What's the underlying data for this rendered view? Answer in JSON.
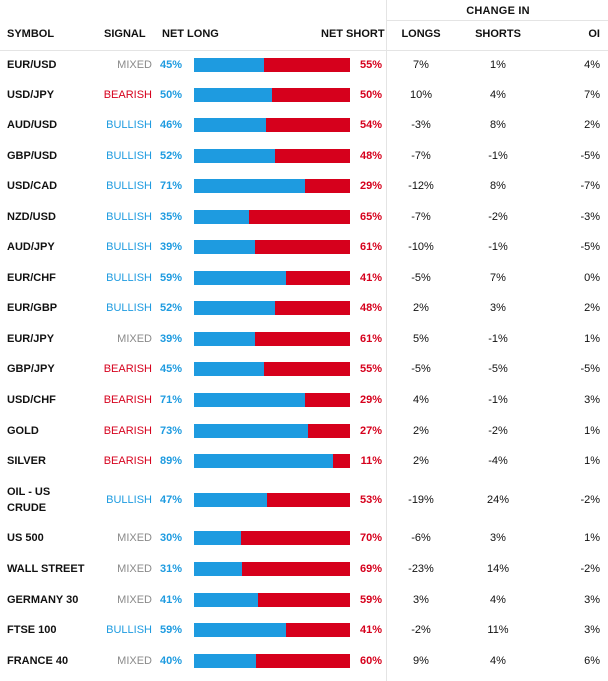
{
  "header": {
    "group_label": "CHANGE IN",
    "symbol": "SYMBOL",
    "signal": "SIGNAL",
    "net_long": "NET LONG",
    "net_short": "NET SHORT",
    "longs": "LONGS",
    "shorts": "SHORTS",
    "oi": "OI"
  },
  "colors": {
    "bullish": "#1e9be0",
    "bearish": "#d6001c",
    "mixed": "#8a8a8a"
  },
  "rows": [
    {
      "symbol": "EUR/USD",
      "signal": "MIXED",
      "net_long": "45%",
      "net_short": "55%",
      "long_fraction": 0.45,
      "longs": "7%",
      "shorts": "1%",
      "oi": "4%"
    },
    {
      "symbol": "USD/JPY",
      "signal": "BEARISH",
      "net_long": "50%",
      "net_short": "50%",
      "long_fraction": 0.5,
      "longs": "10%",
      "shorts": "4%",
      "oi": "7%"
    },
    {
      "symbol": "AUD/USD",
      "signal": "BULLISH",
      "net_long": "46%",
      "net_short": "54%",
      "long_fraction": 0.46,
      "longs": "-3%",
      "shorts": "8%",
      "oi": "2%"
    },
    {
      "symbol": "GBP/USD",
      "signal": "BULLISH",
      "net_long": "52%",
      "net_short": "48%",
      "long_fraction": 0.52,
      "longs": "-7%",
      "shorts": "-1%",
      "oi": "-5%"
    },
    {
      "symbol": "USD/CAD",
      "signal": "BULLISH",
      "net_long": "71%",
      "net_short": "29%",
      "long_fraction": 0.71,
      "longs": "-12%",
      "shorts": "8%",
      "oi": "-7%"
    },
    {
      "symbol": "NZD/USD",
      "signal": "BULLISH",
      "net_long": "35%",
      "net_short": "65%",
      "long_fraction": 0.35,
      "longs": "-7%",
      "shorts": "-2%",
      "oi": "-3%"
    },
    {
      "symbol": "AUD/JPY",
      "signal": "BULLISH",
      "net_long": "39%",
      "net_short": "61%",
      "long_fraction": 0.39,
      "longs": "-10%",
      "shorts": "-1%",
      "oi": "-5%"
    },
    {
      "symbol": "EUR/CHF",
      "signal": "BULLISH",
      "net_long": "59%",
      "net_short": "41%",
      "long_fraction": 0.59,
      "longs": "-5%",
      "shorts": "7%",
      "oi": "0%"
    },
    {
      "symbol": "EUR/GBP",
      "signal": "BULLISH",
      "net_long": "52%",
      "net_short": "48%",
      "long_fraction": 0.52,
      "longs": "2%",
      "shorts": "3%",
      "oi": "2%"
    },
    {
      "symbol": "EUR/JPY",
      "signal": "MIXED",
      "net_long": "39%",
      "net_short": "61%",
      "long_fraction": 0.39,
      "longs": "5%",
      "shorts": "-1%",
      "oi": "1%"
    },
    {
      "symbol": "GBP/JPY",
      "signal": "BEARISH",
      "net_long": "45%",
      "net_short": "55%",
      "long_fraction": 0.45,
      "longs": "-5%",
      "shorts": "-5%",
      "oi": "-5%"
    },
    {
      "symbol": "USD/CHF",
      "signal": "BEARISH",
      "net_long": "71%",
      "net_short": "29%",
      "long_fraction": 0.71,
      "longs": "4%",
      "shorts": "-1%",
      "oi": "3%"
    },
    {
      "symbol": "GOLD",
      "signal": "BEARISH",
      "net_long": "73%",
      "net_short": "27%",
      "long_fraction": 0.73,
      "longs": "2%",
      "shorts": "-2%",
      "oi": "1%"
    },
    {
      "symbol": "SILVER",
      "signal": "BEARISH",
      "net_long": "89%",
      "net_short": "11%",
      "long_fraction": 0.89,
      "longs": "2%",
      "shorts": "-4%",
      "oi": "1%"
    },
    {
      "symbol": "OIL - US CRUDE",
      "signal": "BULLISH",
      "net_long": "47%",
      "net_short": "53%",
      "long_fraction": 0.47,
      "longs": "-19%",
      "shorts": "24%",
      "oi": "-2%"
    },
    {
      "symbol": "US 500",
      "signal": "MIXED",
      "net_long": "30%",
      "net_short": "70%",
      "long_fraction": 0.3,
      "longs": "-6%",
      "shorts": "3%",
      "oi": "1%"
    },
    {
      "symbol": "WALL STREET",
      "signal": "MIXED",
      "net_long": "31%",
      "net_short": "69%",
      "long_fraction": 0.31,
      "longs": "-23%",
      "shorts": "14%",
      "oi": "-2%"
    },
    {
      "symbol": "GERMANY 30",
      "signal": "MIXED",
      "net_long": "41%",
      "net_short": "59%",
      "long_fraction": 0.41,
      "longs": "3%",
      "shorts": "4%",
      "oi": "3%"
    },
    {
      "symbol": "FTSE 100",
      "signal": "BULLISH",
      "net_long": "59%",
      "net_short": "41%",
      "long_fraction": 0.59,
      "longs": "-2%",
      "shorts": "11%",
      "oi": "3%"
    },
    {
      "symbol": "FRANCE 40",
      "signal": "MIXED",
      "net_long": "40%",
      "net_short": "60%",
      "long_fraction": 0.4,
      "longs": "9%",
      "shorts": "4%",
      "oi": "6%"
    }
  ]
}
